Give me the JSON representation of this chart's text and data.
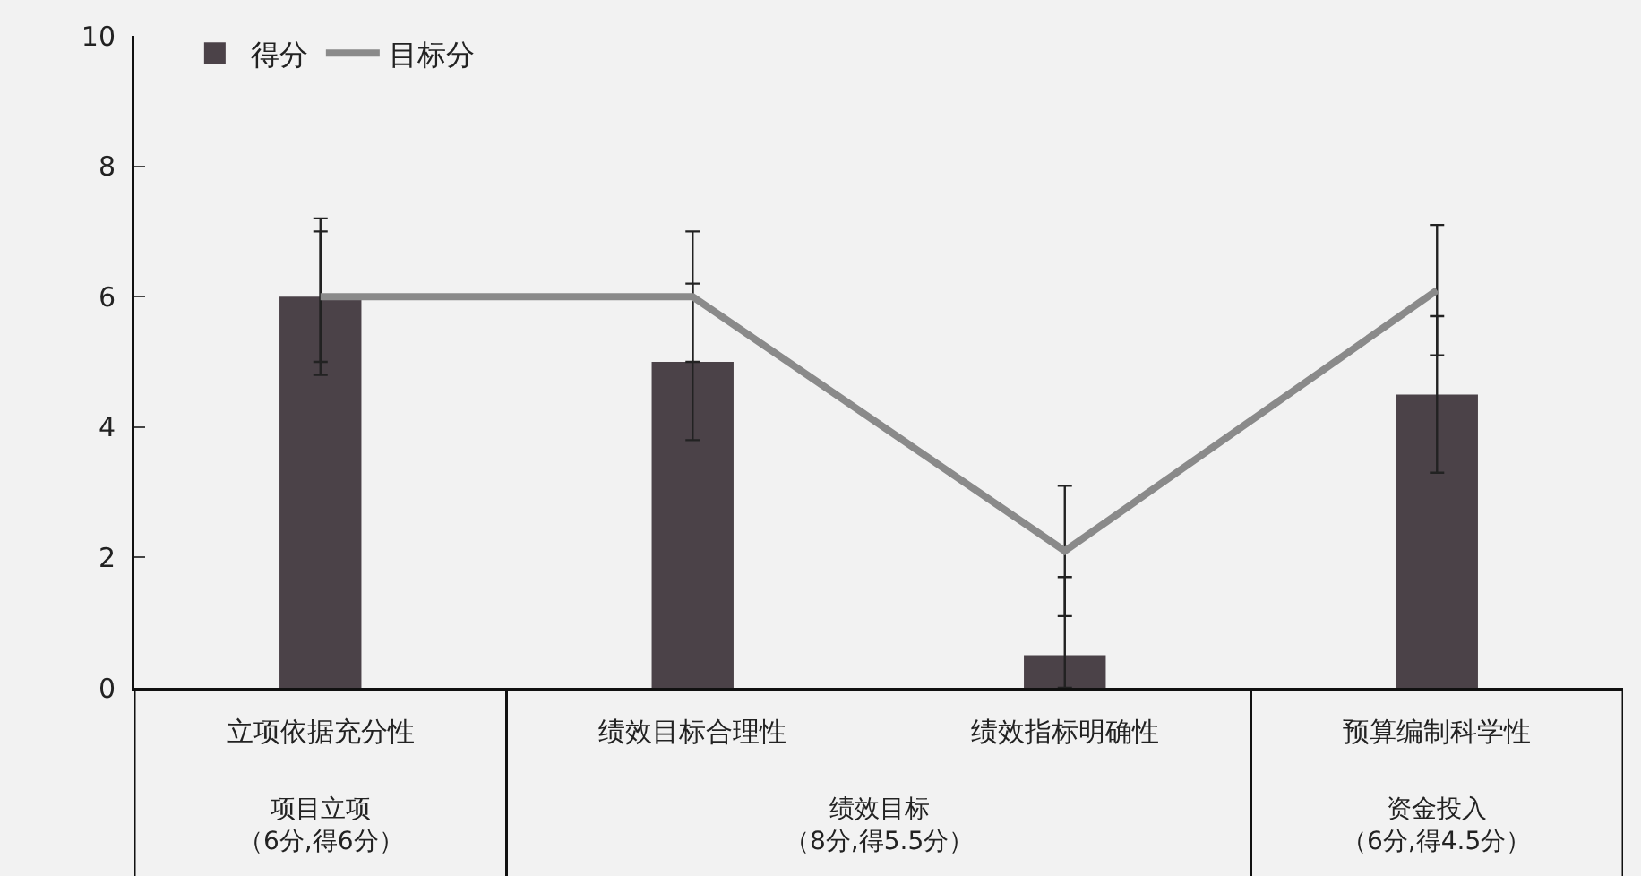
{
  "chart_data": {
    "type": "bar",
    "categories": [
      "立项依据充分性",
      "绩效目标合理性",
      "绩效指标明确性",
      "预算编制科学性"
    ],
    "ylim": [
      0,
      10
    ],
    "yticks": [
      0,
      2,
      4,
      6,
      8,
      10
    ],
    "grid": false,
    "legend": "top left",
    "annotations": [
      "项目立项",
      "（6分,得6分）",
      "绩效目标",
      "（8分,得5.5分）",
      "资金投入",
      "（6分,得4.5分）"
    ],
    "series": [
      {
        "name": "得分",
        "color": "#4b4248",
        "values": [
          6,
          5,
          0.5,
          4.5
        ],
        "errors": [
          1.2,
          1.2,
          [
            0,
            1.7
          ],
          1.2
        ]
      },
      {
        "name": "目标分",
        "type": "line",
        "color": "#8a8a8a",
        "values": [
          6,
          6,
          2.1,
          6.1
        ],
        "errors": [
          1,
          1,
          1,
          1
        ]
      }
    ]
  }
}
